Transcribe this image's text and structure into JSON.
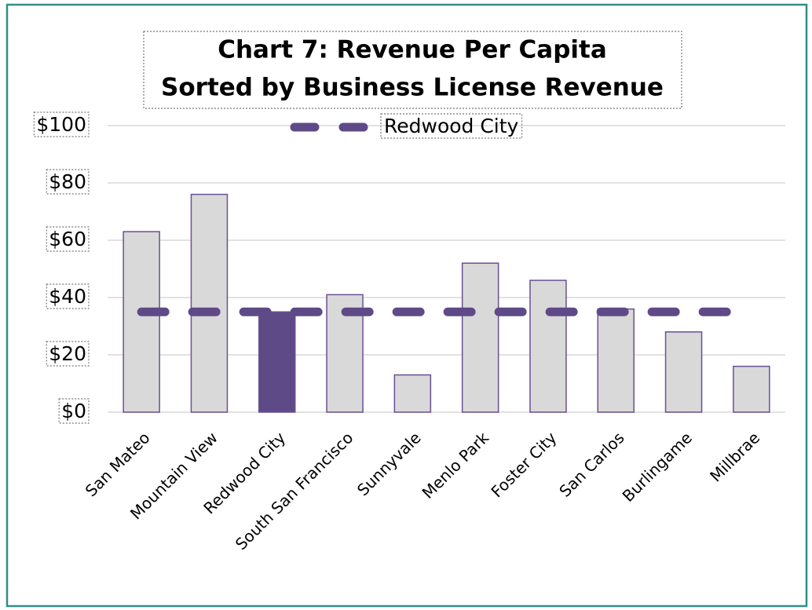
{
  "chart_data": {
    "type": "bar",
    "title_lines": [
      "Chart 7: Revenue Per Capita",
      "Sorted by Business License Revenue"
    ],
    "categories": [
      "San Mateo",
      "Mountain View",
      "Redwood City",
      "South San Francisco",
      "Sunnyvale",
      "Menlo Park",
      "Foster City",
      "San Carlos",
      "Burlingame",
      "Millbrae"
    ],
    "values": [
      63,
      76,
      35,
      41,
      13,
      52,
      46,
      36,
      28,
      16
    ],
    "bar_colors": [
      "#d9d9d9",
      "#d9d9d9",
      "#5e4a87",
      "#d9d9d9",
      "#d9d9d9",
      "#d9d9d9",
      "#d9d9d9",
      "#d9d9d9",
      "#d9d9d9",
      "#d9d9d9"
    ],
    "bar_edge_color": "#6a4f96",
    "series": [
      {
        "name": "Redwood City",
        "color": "#5e4a87",
        "values": [
          35,
          35,
          35,
          35,
          35,
          35,
          35,
          35,
          35,
          35
        ]
      }
    ],
    "ylim": [
      0,
      100
    ],
    "yticks": [
      {
        "value": 0,
        "label": "$0"
      },
      {
        "value": 20,
        "label": "$20"
      },
      {
        "value": 40,
        "label": "$40"
      },
      {
        "value": 60,
        "label": "$60"
      },
      {
        "value": 80,
        "label": "$80"
      },
      {
        "value": 100,
        "label": "$100"
      }
    ],
    "grid": true,
    "legend": "top"
  }
}
